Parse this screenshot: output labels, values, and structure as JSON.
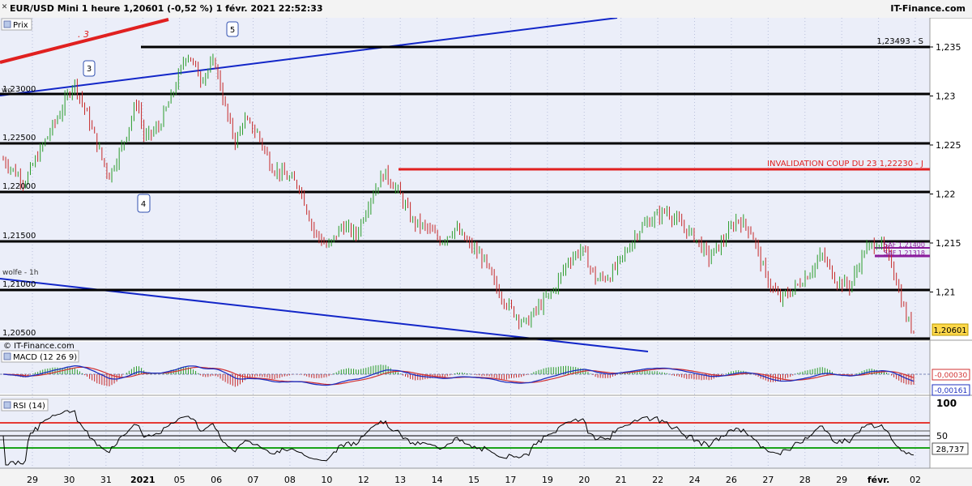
{
  "header": {
    "title": "EUR/USD Mini 1 heure 1,20601 (-0,52 %) 1 févr. 2021 22:52:33",
    "brand": "IT-Finance.com",
    "close_icon": "close-icon"
  },
  "colors": {
    "price_up": "#2a9c2a",
    "price_down": "#c62828",
    "trend_blue": "#1226c8",
    "red_line": "#e02020",
    "purple": "#8a1c9c",
    "macd_line": "#1e2fbf",
    "macd_signal": "#d23030",
    "rsi_line": "#000000",
    "rsi_upper": "#e53935",
    "rsi_lower": "#1aa31a",
    "panel_bg": "#ebeef9"
  },
  "panels": {
    "price": {
      "label": "Prix",
      "copyright": "© IT-Finance.com",
      "last_price": "1,20601"
    },
    "macd": {
      "label": "MACD (12 26 9)",
      "value1": "-0,00030",
      "value2": "-0,00161"
    },
    "rsi": {
      "label": "RSI (14)",
      "value": "28,737",
      "level_100": "100",
      "level_50": "50"
    }
  },
  "annotations": {
    "wave_3_red": ". 3",
    "wave_5": "5",
    "wave_3": "3",
    "wave_4": "4",
    "resistance_s": "1,23493 - S",
    "invalidation": "INVALIDATION COUP DU 23 1,22230 - J",
    "wolfe": "wolfe - 1h",
    "wo_label": "wo",
    "purple_1": "SAF 1,21400",
    "purple_2": "SAF 1,21318"
  },
  "chart_data": {
    "type": "line",
    "series_kind": "candlestick",
    "instrument": "EUR/USD Mini 1 heure",
    "last": 1.20601,
    "change_pct": -0.52,
    "y_axis": {
      "range": [
        1.2045,
        1.2375
      ],
      "ticks": [
        "1,235",
        "1,23",
        "1,225",
        "1,22",
        "1,215",
        "1,21"
      ],
      "tick_values": [
        1.235,
        1.23,
        1.225,
        1.22,
        1.215,
        1.21
      ]
    },
    "x_axis": {
      "ticks": [
        "29",
        "30",
        "31",
        "2021",
        "05",
        "06",
        "07",
        "08",
        "10",
        "12",
        "13",
        "14",
        "15",
        "17",
        "19",
        "20",
        "21",
        "22",
        "24",
        "26",
        "27",
        "28",
        "29",
        "févr.",
        "02"
      ],
      "bold_ticks": [
        "2021",
        "févr."
      ]
    },
    "horizontal_levels": [
      {
        "value": 1.23493,
        "label": "1,23493 - S",
        "color": "black"
      },
      {
        "value": 1.23,
        "label": "1,23000",
        "color": "black"
      },
      {
        "value": 1.225,
        "label": "1,22500",
        "color": "black"
      },
      {
        "value": 1.22,
        "label": "1,22000",
        "color": "black"
      },
      {
        "value": 1.215,
        "label": "1,21500",
        "color": "black"
      },
      {
        "value": 1.21,
        "label": "1,21000",
        "color": "black"
      },
      {
        "value": 1.205,
        "label": "1,20500",
        "color": "black"
      },
      {
        "value": 1.2223,
        "label": "INVALIDATION COUP DU 23 1,22230 - J",
        "color": "red"
      },
      {
        "value": 1.214,
        "label": "SAF 1,21400",
        "color": "purple"
      },
      {
        "value": 1.21318,
        "label": "SAF 1,21318",
        "color": "purple"
      }
    ],
    "price_path": [
      [
        0,
        1.2235
      ],
      [
        3,
        1.2212
      ],
      [
        6,
        1.2255
      ],
      [
        8,
        1.2282
      ],
      [
        10,
        1.2315
      ],
      [
        12,
        1.2278
      ],
      [
        14,
        1.2236
      ],
      [
        15,
        1.2218
      ],
      [
        17,
        1.2252
      ],
      [
        19,
        1.2296
      ],
      [
        20,
        1.2256
      ],
      [
        22,
        1.2268
      ],
      [
        24,
        1.2302
      ],
      [
        26,
        1.2345
      ],
      [
        28,
        1.2318
      ],
      [
        30,
        1.2335
      ],
      [
        31,
        1.2302
      ],
      [
        32,
        1.2272
      ],
      [
        33,
        1.2252
      ],
      [
        34,
        1.2276
      ],
      [
        36,
        1.2262
      ],
      [
        38,
        1.2228
      ],
      [
        40,
        1.2218
      ],
      [
        42,
        1.2208
      ],
      [
        44,
        1.2162
      ],
      [
        46,
        1.2145
      ],
      [
        48,
        1.2168
      ],
      [
        50,
        1.2158
      ],
      [
        52,
        1.2196
      ],
      [
        54,
        1.2222
      ],
      [
        56,
        1.2202
      ],
      [
        58,
        1.2172
      ],
      [
        60,
        1.2165
      ],
      [
        62,
        1.2152
      ],
      [
        64,
        1.2165
      ],
      [
        66,
        1.2148
      ],
      [
        68,
        1.2134
      ],
      [
        70,
        1.2102
      ],
      [
        72,
        1.2082
      ],
      [
        74,
        1.2067
      ],
      [
        76,
        1.2086
      ],
      [
        78,
        1.2102
      ],
      [
        80,
        1.2132
      ],
      [
        82,
        1.2144
      ],
      [
        84,
        1.2112
      ],
      [
        86,
        1.2117
      ],
      [
        88,
        1.2138
      ],
      [
        90,
        1.2163
      ],
      [
        92,
        1.2175
      ],
      [
        94,
        1.2183
      ],
      [
        96,
        1.2168
      ],
      [
        98,
        1.2156
      ],
      [
        100,
        1.2135
      ],
      [
        102,
        1.2152
      ],
      [
        104,
        1.2175
      ],
      [
        106,
        1.2162
      ],
      [
        108,
        1.2116
      ],
      [
        110,
        1.2092
      ],
      [
        112,
        1.2103
      ],
      [
        114,
        1.2118
      ],
      [
        116,
        1.2138
      ],
      [
        118,
        1.2112
      ],
      [
        120,
        1.2106
      ],
      [
        122,
        1.2142
      ],
      [
        124,
        1.2152
      ],
      [
        126,
        1.2128
      ],
      [
        127,
        1.2098
      ],
      [
        128,
        1.2073
      ],
      [
        129,
        1.206
      ]
    ]
  }
}
